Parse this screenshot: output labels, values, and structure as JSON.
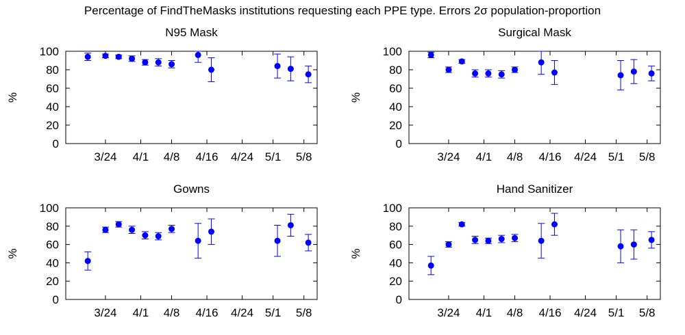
{
  "figure": {
    "title": "Percentage of FindTheMasks institutions requesting each PPE type. Errors 2σ population-proportion"
  },
  "style": {
    "marker_color": "#0000ff",
    "axis_color": "#000000"
  },
  "chart_data": [
    {
      "type": "scatter",
      "title": "N95 Mask",
      "xlabel": "",
      "ylabel": "%",
      "ylim": [
        0,
        100
      ],
      "yticks": [
        0,
        20,
        40,
        60,
        80,
        100
      ],
      "xlim": [
        "2020-03-15",
        "2020-05-11"
      ],
      "xticks": [
        {
          "date": "2020-03-24",
          "label": "3/24"
        },
        {
          "date": "2020-04-01",
          "label": "4/1"
        },
        {
          "date": "2020-04-08",
          "label": "4/8"
        },
        {
          "date": "2020-04-16",
          "label": "4/16"
        },
        {
          "date": "2020-04-24",
          "label": "4/24"
        },
        {
          "date": "2020-05-01",
          "label": "5/1"
        },
        {
          "date": "2020-05-08",
          "label": "5/8"
        }
      ],
      "grid": false,
      "error_bars": true,
      "points": [
        {
          "x": "2020-03-20",
          "y": 94,
          "err": 4
        },
        {
          "x": "2020-03-24",
          "y": 95,
          "err": 2
        },
        {
          "x": "2020-03-27",
          "y": 94,
          "err": 2
        },
        {
          "x": "2020-03-30",
          "y": 92,
          "err": 3
        },
        {
          "x": "2020-04-02",
          "y": 88,
          "err": 3
        },
        {
          "x": "2020-04-05",
          "y": 88,
          "err": 4
        },
        {
          "x": "2020-04-08",
          "y": 86,
          "err": 4
        },
        {
          "x": "2020-04-14",
          "y": 96,
          "err": 8
        },
        {
          "x": "2020-04-17",
          "y": 80,
          "err": 13
        },
        {
          "x": "2020-05-02",
          "y": 84,
          "err": 13
        },
        {
          "x": "2020-05-05",
          "y": 81,
          "err": 13
        },
        {
          "x": "2020-05-09",
          "y": 75,
          "err": 9
        }
      ]
    },
    {
      "type": "scatter",
      "title": "Surgical Mask",
      "xlabel": "",
      "ylabel": "%",
      "ylim": [
        0,
        100
      ],
      "yticks": [
        0,
        20,
        40,
        60,
        80,
        100
      ],
      "xlim": [
        "2020-03-15",
        "2020-05-11"
      ],
      "xticks": [
        {
          "date": "2020-03-24",
          "label": "3/24"
        },
        {
          "date": "2020-04-01",
          "label": "4/1"
        },
        {
          "date": "2020-04-08",
          "label": "4/8"
        },
        {
          "date": "2020-04-16",
          "label": "4/16"
        },
        {
          "date": "2020-04-24",
          "label": "4/24"
        },
        {
          "date": "2020-05-01",
          "label": "5/1"
        },
        {
          "date": "2020-05-08",
          "label": "5/8"
        }
      ],
      "grid": false,
      "error_bars": true,
      "points": [
        {
          "x": "2020-03-20",
          "y": 96,
          "err": 3
        },
        {
          "x": "2020-03-24",
          "y": 80,
          "err": 3
        },
        {
          "x": "2020-03-27",
          "y": 89,
          "err": 2
        },
        {
          "x": "2020-03-30",
          "y": 76,
          "err": 4
        },
        {
          "x": "2020-04-02",
          "y": 76,
          "err": 4
        },
        {
          "x": "2020-04-05",
          "y": 75,
          "err": 4
        },
        {
          "x": "2020-04-08",
          "y": 80,
          "err": 3
        },
        {
          "x": "2020-04-14",
          "y": 88,
          "err": 13
        },
        {
          "x": "2020-04-17",
          "y": 77,
          "err": 13
        },
        {
          "x": "2020-05-02",
          "y": 74,
          "err": 16
        },
        {
          "x": "2020-05-05",
          "y": 78,
          "err": 13
        },
        {
          "x": "2020-05-09",
          "y": 76,
          "err": 8
        }
      ]
    },
    {
      "type": "scatter",
      "title": "Gowns",
      "xlabel": "",
      "ylabel": "%",
      "ylim": [
        0,
        100
      ],
      "yticks": [
        0,
        20,
        40,
        60,
        80,
        100
      ],
      "xlim": [
        "2020-03-15",
        "2020-05-11"
      ],
      "xticks": [
        {
          "date": "2020-03-24",
          "label": "3/24"
        },
        {
          "date": "2020-04-01",
          "label": "4/1"
        },
        {
          "date": "2020-04-08",
          "label": "4/8"
        },
        {
          "date": "2020-04-16",
          "label": "4/16"
        },
        {
          "date": "2020-04-24",
          "label": "4/24"
        },
        {
          "date": "2020-05-01",
          "label": "5/1"
        },
        {
          "date": "2020-05-08",
          "label": "5/8"
        }
      ],
      "grid": false,
      "error_bars": true,
      "points": [
        {
          "x": "2020-03-20",
          "y": 42,
          "err": 10
        },
        {
          "x": "2020-03-24",
          "y": 76,
          "err": 3
        },
        {
          "x": "2020-03-27",
          "y": 82,
          "err": 3
        },
        {
          "x": "2020-03-30",
          "y": 76,
          "err": 4
        },
        {
          "x": "2020-04-02",
          "y": 70,
          "err": 4
        },
        {
          "x": "2020-04-05",
          "y": 69,
          "err": 4
        },
        {
          "x": "2020-04-08",
          "y": 77,
          "err": 4
        },
        {
          "x": "2020-04-14",
          "y": 64,
          "err": 19
        },
        {
          "x": "2020-04-17",
          "y": 74,
          "err": 14
        },
        {
          "x": "2020-05-02",
          "y": 64,
          "err": 17
        },
        {
          "x": "2020-05-05",
          "y": 81,
          "err": 12
        },
        {
          "x": "2020-05-09",
          "y": 62,
          "err": 9
        }
      ]
    },
    {
      "type": "scatter",
      "title": "Hand Sanitizer",
      "xlabel": "",
      "ylabel": "%",
      "ylim": [
        0,
        100
      ],
      "yticks": [
        0,
        20,
        40,
        60,
        80,
        100
      ],
      "xlim": [
        "2020-03-15",
        "2020-05-11"
      ],
      "xticks": [
        {
          "date": "2020-03-24",
          "label": "3/24"
        },
        {
          "date": "2020-04-01",
          "label": "4/1"
        },
        {
          "date": "2020-04-08",
          "label": "4/8"
        },
        {
          "date": "2020-04-16",
          "label": "4/16"
        },
        {
          "date": "2020-04-24",
          "label": "4/24"
        },
        {
          "date": "2020-05-01",
          "label": "5/1"
        },
        {
          "date": "2020-05-08",
          "label": "5/8"
        }
      ],
      "grid": false,
      "error_bars": true,
      "points": [
        {
          "x": "2020-03-20",
          "y": 37,
          "err": 10
        },
        {
          "x": "2020-03-24",
          "y": 60,
          "err": 3
        },
        {
          "x": "2020-03-27",
          "y": 82,
          "err": 2
        },
        {
          "x": "2020-03-30",
          "y": 65,
          "err": 4
        },
        {
          "x": "2020-04-02",
          "y": 64,
          "err": 3
        },
        {
          "x": "2020-04-05",
          "y": 66,
          "err": 4
        },
        {
          "x": "2020-04-08",
          "y": 67,
          "err": 4
        },
        {
          "x": "2020-04-14",
          "y": 64,
          "err": 19
        },
        {
          "x": "2020-04-17",
          "y": 82,
          "err": 12
        },
        {
          "x": "2020-05-02",
          "y": 58,
          "err": 18
        },
        {
          "x": "2020-05-05",
          "y": 60,
          "err": 16
        },
        {
          "x": "2020-05-09",
          "y": 65,
          "err": 9
        }
      ]
    }
  ]
}
